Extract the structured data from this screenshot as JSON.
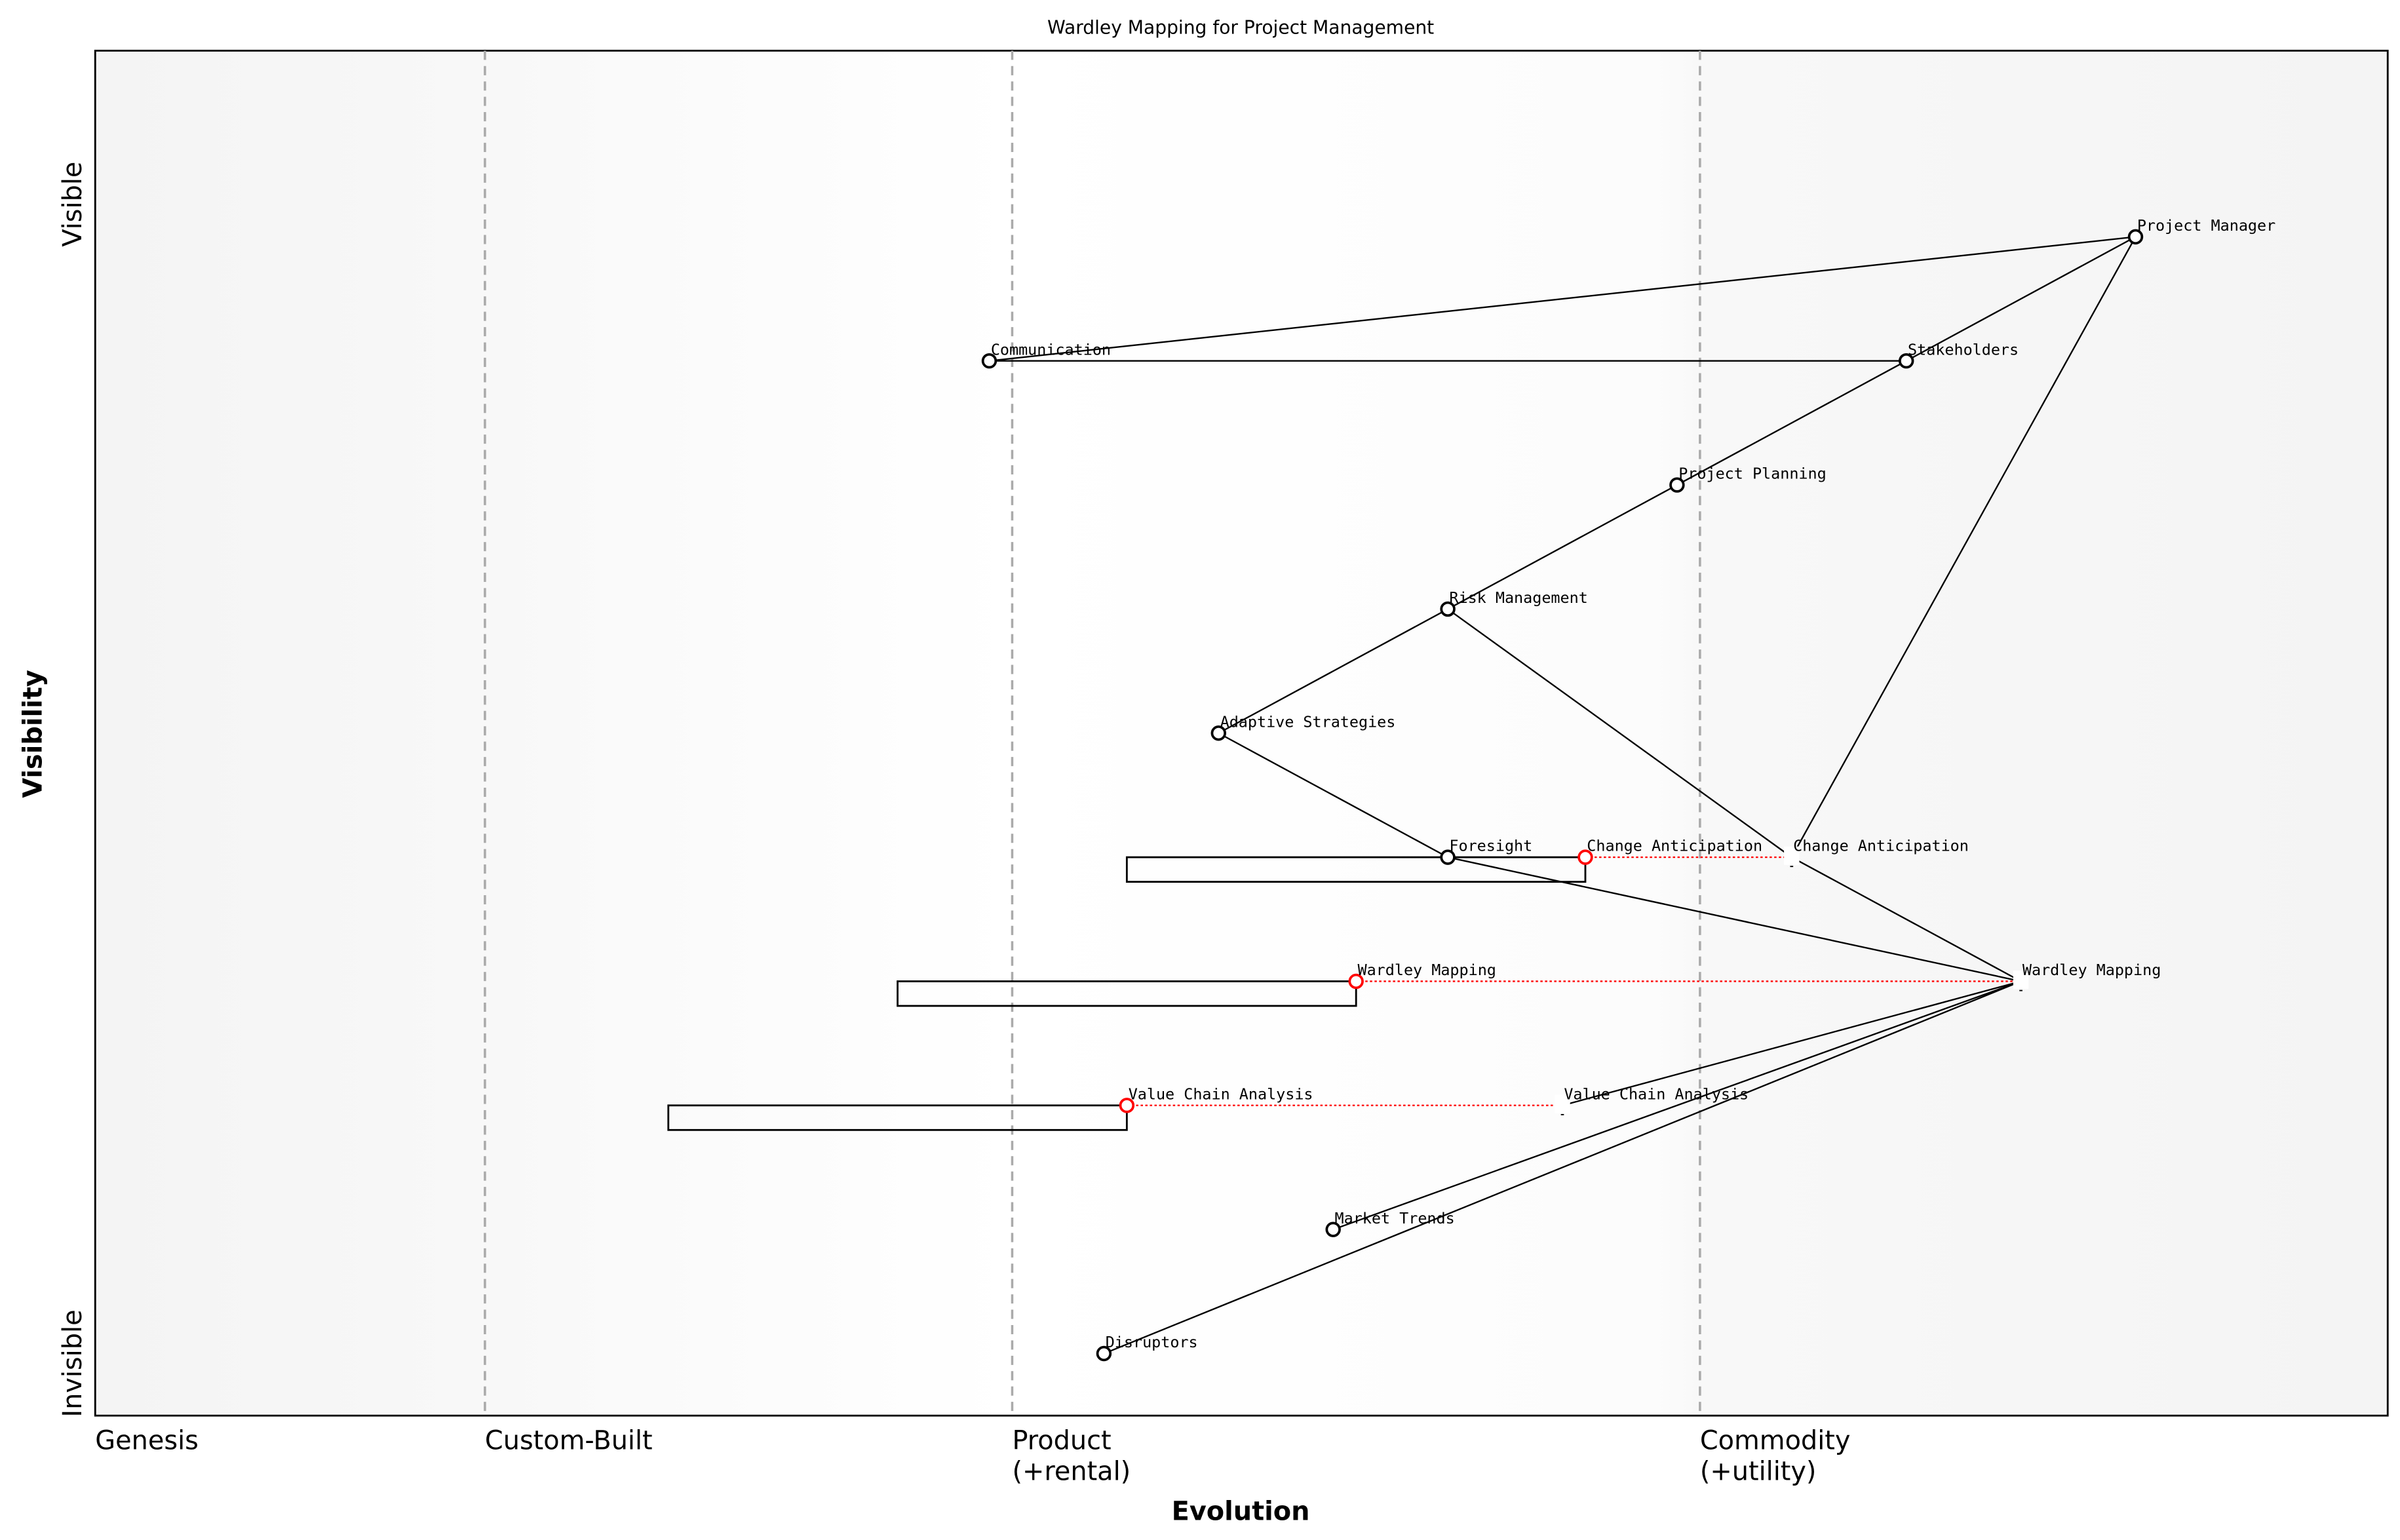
{
  "chart_data": {
    "type": "scatter",
    "title": "Wardley Mapping for Project Management",
    "xlabel": "Evolution",
    "ylabel": "Visibility",
    "xlim": [
      0,
      1
    ],
    "ylim": [
      0,
      1.1
    ],
    "y_tick_labels": {
      "top": "Visible",
      "bottom": "Invisible"
    },
    "stages": [
      {
        "label": "Genesis",
        "x": 0.0
      },
      {
        "label": "Custom-Built",
        "x": 0.17
      },
      {
        "label": "Product\n(+rental)",
        "x": 0.4
      },
      {
        "label": "Commodity\n(+utility)",
        "x": 0.7
      }
    ],
    "components": [
      {
        "name": "Project Manager",
        "evolution": 0.89,
        "visibility": 0.95
      },
      {
        "name": "Stakeholders",
        "evolution": 0.79,
        "visibility": 0.85
      },
      {
        "name": "Communication",
        "evolution": 0.39,
        "visibility": 0.85
      },
      {
        "name": "Project Planning",
        "evolution": 0.69,
        "visibility": 0.75
      },
      {
        "name": "Risk Management",
        "evolution": 0.59,
        "visibility": 0.65
      },
      {
        "name": "Adaptive Strategies",
        "evolution": 0.49,
        "visibility": 0.55
      },
      {
        "name": "Foresight",
        "evolution": 0.59,
        "visibility": 0.45
      },
      {
        "name": "Change Anticipation",
        "evolution": 0.65,
        "visibility": 0.45,
        "inertia": true
      },
      {
        "name": "Wardley Mapping",
        "evolution": 0.55,
        "visibility": 0.35,
        "inertia": true
      },
      {
        "name": "Value Chain Analysis",
        "evolution": 0.45,
        "visibility": 0.25,
        "inertia": true
      },
      {
        "name": "Market Trends",
        "evolution": 0.54,
        "visibility": 0.15
      },
      {
        "name": "Disruptors",
        "evolution": 0.44,
        "visibility": 0.05
      }
    ],
    "evolved": [
      {
        "name": "Change Anticipation",
        "evolution": 0.74,
        "visibility": 0.45
      },
      {
        "name": "Wardley Mapping",
        "evolution": 0.84,
        "visibility": 0.35
      },
      {
        "name": "Value Chain Analysis",
        "evolution": 0.64,
        "visibility": 0.25
      }
    ],
    "inertia_boxes": [
      {
        "component": "Change Anticipation",
        "from": 0.45,
        "to": 0.65,
        "visibility": 0.45
      },
      {
        "component": "Wardley Mapping",
        "from": 0.35,
        "to": 0.55,
        "visibility": 0.35
      },
      {
        "component": "Value Chain Analysis",
        "from": 0.25,
        "to": 0.45,
        "visibility": 0.25
      }
    ],
    "links": [
      [
        "Project Manager",
        "Communication"
      ],
      [
        "Project Manager",
        "Stakeholders"
      ],
      [
        "Project Manager",
        "Change Anticipation*"
      ],
      [
        "Communication",
        "Stakeholders"
      ],
      [
        "Stakeholders",
        "Project Planning"
      ],
      [
        "Project Planning",
        "Risk Management"
      ],
      [
        "Risk Management",
        "Adaptive Strategies"
      ],
      [
        "Risk Management",
        "Change Anticipation*"
      ],
      [
        "Adaptive Strategies",
        "Foresight"
      ],
      [
        "Foresight",
        "Wardley Mapping*"
      ],
      [
        "Change Anticipation*",
        "Wardley Mapping*"
      ],
      [
        "Value Chain Analysis*",
        "Wardley Mapping*"
      ],
      [
        "Market Trends",
        "Wardley Mapping*"
      ],
      [
        "Disruptors",
        "Wardley Mapping*"
      ]
    ],
    "colors": {
      "component": "#000000",
      "inertia": "#ff0000",
      "stage_line": "#aaaaaa",
      "genesis_bg": "#f4f4f4",
      "commodity_bg": "#f4f4f4"
    }
  }
}
